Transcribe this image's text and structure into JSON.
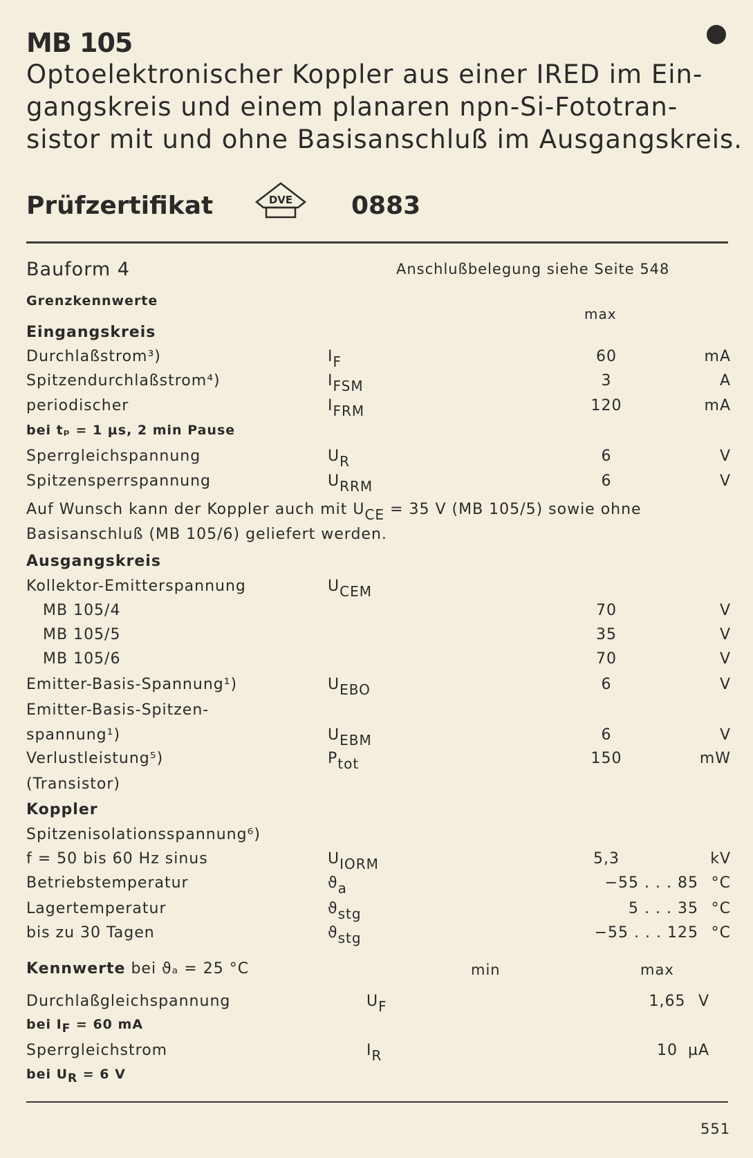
{
  "header": {
    "title": "MB 105",
    "description_lines": [
      "Optoelektronischer Koppler aus einer IRED im Ein-",
      "gangskreis und einem planaren npn-Si-Fototran-",
      "sistor mit und ohne Basisanschluß im Ausgangskreis."
    ],
    "certificate_label": "Prüfzertifikat",
    "certificate_logo_text": "DVE",
    "certificate_number": "0883"
  },
  "meta": {
    "bauform": "Bauform 4",
    "pin_reference": "Anschlußbelegung siehe Seite 548"
  },
  "limits": {
    "heading": "Grenzkennwerte",
    "max_label": "max",
    "input_heading": "Eingangskreis",
    "input_rows": [
      {
        "label": "Durchlaßstrom³)",
        "sym": "I",
        "sub": "F",
        "value": "60",
        "unit": "mA"
      },
      {
        "label": "Spitzendurchlaßstrom⁴)",
        "sym": "I",
        "sub": "FSM",
        "value": "3",
        "unit": "A"
      },
      {
        "label": "periodischer",
        "sym": "I",
        "sub": "FRM",
        "value": "120",
        "unit": "mA"
      },
      {
        "label": "bei tₚ = 1 µs, 2 min Pause",
        "small": true
      },
      {
        "label": "Sperrgleichspannung",
        "sym": "U",
        "sub": "R",
        "value": "6",
        "unit": "V"
      },
      {
        "label": "Spitzensperrspannung",
        "sym": "U",
        "sub": "RRM",
        "value": "6",
        "unit": "V"
      }
    ],
    "note_lines": [
      "Auf Wunsch kann der Koppler auch mit U_CE = 35 V (MB 105/5) sowie ohne",
      "Basisanschluß (MB 105/6) geliefert werden."
    ],
    "output_heading": "Ausgangskreis",
    "output_rows": [
      {
        "label": "Kollektor-Emitterspannung",
        "sym": "U",
        "sub": "CEM"
      },
      {
        "label": "MB 105/4",
        "indent": true,
        "value": "70",
        "unit": "V"
      },
      {
        "label": "MB 105/5",
        "indent": true,
        "value": "35",
        "unit": "V"
      },
      {
        "label": "MB 105/6",
        "indent": true,
        "value": "70",
        "unit": "V"
      },
      {
        "label": "Emitter-Basis-Spannung¹)",
        "sym": "U",
        "sub": "EBO",
        "value": "6",
        "unit": "V"
      },
      {
        "label": "Emitter-Basis-Spitzen-"
      },
      {
        "label": "spannung¹)",
        "sym": "U",
        "sub": "EBM",
        "value": "6",
        "unit": "V"
      },
      {
        "label": "Verlustleistung⁵)",
        "sym": "P",
        "sub": "tot",
        "value": "150",
        "unit": "mW"
      },
      {
        "label": "(Transistor)"
      }
    ],
    "coupler_heading": "Koppler",
    "coupler_rows": [
      {
        "label": "Spitzenisolationsspannung⁶)"
      },
      {
        "label": "f = 50 bis 60 Hz sinus",
        "sym": "U",
        "sub": "IORM",
        "value": "5,3",
        "unit": "kV"
      },
      {
        "label": "Betriebstemperatur",
        "sym": "ϑ",
        "sub": "a",
        "value": "−55 . . . 85",
        "unit": "°C"
      },
      {
        "label": "Lagertemperatur",
        "sym": "ϑ",
        "sub": "stg",
        "value": "5 . . . 35",
        "unit": "°C"
      },
      {
        "label": "bis zu 30 Tagen",
        "sym": "ϑ",
        "sub": "stg",
        "value": "−55 . . . 125",
        "unit": "°C"
      }
    ]
  },
  "characteristics": {
    "heading_bold": "Kennwerte",
    "heading_rest": "bei ϑₐ = 25 °C",
    "min_label": "min",
    "max_label": "max",
    "rows": [
      {
        "label": "Durchlaßgleichspannung",
        "sym": "U",
        "sub": "F",
        "max": "1,65",
        "unit": "V"
      },
      {
        "label": "bei I_F = 60 mA",
        "small": true
      },
      {
        "label": "Sperrgleichstrom",
        "sym": "I",
        "sub": "R",
        "max": "10",
        "unit": "µA"
      },
      {
        "label": "bei U_R = 6 V",
        "small": true
      }
    ]
  },
  "footer": {
    "page_number": "551"
  }
}
